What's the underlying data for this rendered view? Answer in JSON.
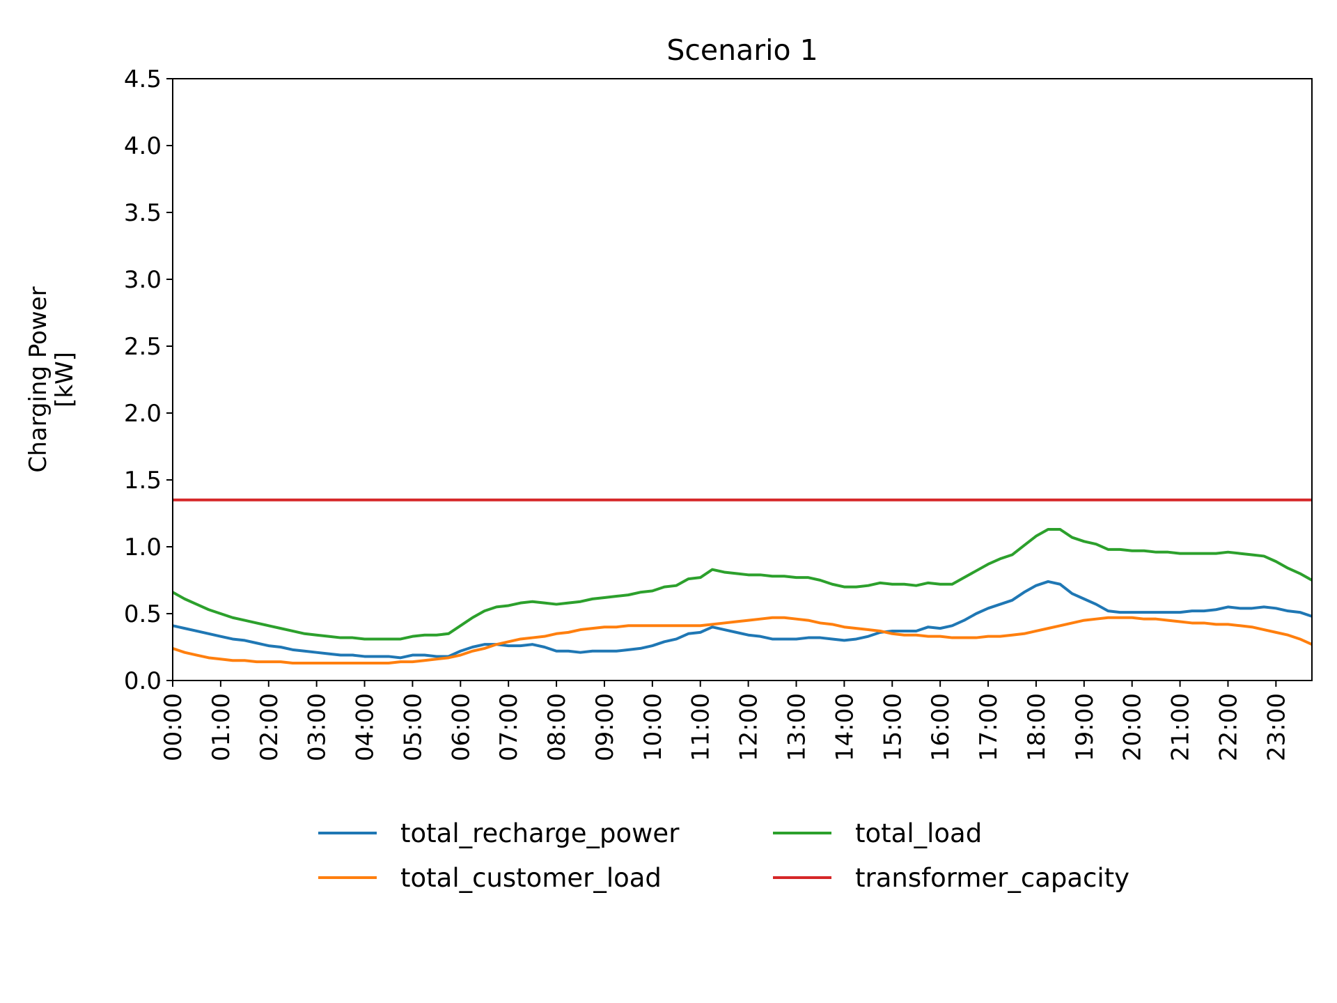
{
  "chart_data": {
    "type": "line",
    "title": "Scenario 1",
    "ylabel_lines": [
      "Charging Power",
      "[kW]"
    ],
    "xlabel": "",
    "x_ticks": [
      "00:00",
      "01:00",
      "02:00",
      "03:00",
      "04:00",
      "05:00",
      "06:00",
      "07:00",
      "08:00",
      "09:00",
      "10:00",
      "11:00",
      "12:00",
      "13:00",
      "14:00",
      "15:00",
      "16:00",
      "17:00",
      "18:00",
      "19:00",
      "20:00",
      "21:00",
      "22:00",
      "23:00"
    ],
    "x_hours": [
      0.0,
      0.25,
      0.5,
      0.75,
      1.0,
      1.25,
      1.5,
      1.75,
      2.0,
      2.25,
      2.5,
      2.75,
      3.0,
      3.25,
      3.5,
      3.75,
      4.0,
      4.25,
      4.5,
      4.75,
      5.0,
      5.25,
      5.5,
      5.75,
      6.0,
      6.25,
      6.5,
      6.75,
      7.0,
      7.25,
      7.5,
      7.75,
      8.0,
      8.25,
      8.5,
      8.75,
      9.0,
      9.25,
      9.5,
      9.75,
      10.0,
      10.25,
      10.5,
      10.75,
      11.0,
      11.25,
      11.5,
      11.75,
      12.0,
      12.25,
      12.5,
      12.75,
      13.0,
      13.25,
      13.5,
      13.75,
      14.0,
      14.25,
      14.5,
      14.75,
      15.0,
      15.25,
      15.5,
      15.75,
      16.0,
      16.25,
      16.5,
      16.75,
      17.0,
      17.25,
      17.5,
      17.75,
      18.0,
      18.25,
      18.5,
      18.75,
      19.0,
      19.25,
      19.5,
      19.75,
      20.0,
      20.25,
      20.5,
      20.75,
      21.0,
      21.25,
      21.5,
      21.75,
      22.0,
      22.25,
      22.5,
      22.75,
      23.0,
      23.25,
      23.5,
      23.75
    ],
    "xlim": [
      0,
      23.75
    ],
    "ylim": [
      0,
      4.5
    ],
    "y_ticks": [
      0.0,
      0.5,
      1.0,
      1.5,
      2.0,
      2.5,
      3.0,
      3.5,
      4.0,
      4.5
    ],
    "y_tick_labels": [
      "0.0",
      "0.5",
      "1.0",
      "1.5",
      "2.0",
      "2.5",
      "3.0",
      "3.5",
      "4.0",
      "4.5"
    ],
    "legend_position": "bottom-center",
    "grid": false,
    "series": [
      {
        "name": "total_recharge_power",
        "color": "#1f77b4",
        "values": [
          0.41,
          0.39,
          0.37,
          0.35,
          0.33,
          0.31,
          0.3,
          0.28,
          0.26,
          0.25,
          0.23,
          0.22,
          0.21,
          0.2,
          0.19,
          0.19,
          0.18,
          0.18,
          0.18,
          0.17,
          0.19,
          0.19,
          0.18,
          0.18,
          0.22,
          0.25,
          0.27,
          0.27,
          0.26,
          0.26,
          0.27,
          0.25,
          0.22,
          0.22,
          0.21,
          0.22,
          0.22,
          0.22,
          0.23,
          0.24,
          0.26,
          0.29,
          0.31,
          0.35,
          0.36,
          0.4,
          0.38,
          0.36,
          0.34,
          0.33,
          0.31,
          0.31,
          0.31,
          0.32,
          0.32,
          0.31,
          0.3,
          0.31,
          0.33,
          0.36,
          0.37,
          0.37,
          0.37,
          0.4,
          0.39,
          0.41,
          0.45,
          0.5,
          0.54,
          0.57,
          0.6,
          0.66,
          0.71,
          0.74,
          0.72,
          0.65,
          0.61,
          0.57,
          0.52,
          0.51,
          0.51,
          0.51,
          0.51,
          0.51,
          0.51,
          0.52,
          0.52,
          0.53,
          0.55,
          0.54,
          0.54,
          0.55,
          0.54,
          0.52,
          0.51,
          0.48
        ]
      },
      {
        "name": "total_customer_load",
        "color": "#ff7f0e",
        "values": [
          0.24,
          0.21,
          0.19,
          0.17,
          0.16,
          0.15,
          0.15,
          0.14,
          0.14,
          0.14,
          0.13,
          0.13,
          0.13,
          0.13,
          0.13,
          0.13,
          0.13,
          0.13,
          0.13,
          0.14,
          0.14,
          0.15,
          0.16,
          0.17,
          0.19,
          0.22,
          0.24,
          0.27,
          0.29,
          0.31,
          0.32,
          0.33,
          0.35,
          0.36,
          0.38,
          0.39,
          0.4,
          0.4,
          0.41,
          0.41,
          0.41,
          0.41,
          0.41,
          0.41,
          0.41,
          0.42,
          0.43,
          0.44,
          0.45,
          0.46,
          0.47,
          0.47,
          0.46,
          0.45,
          0.43,
          0.42,
          0.4,
          0.39,
          0.38,
          0.37,
          0.35,
          0.34,
          0.34,
          0.33,
          0.33,
          0.32,
          0.32,
          0.32,
          0.33,
          0.33,
          0.34,
          0.35,
          0.37,
          0.39,
          0.41,
          0.43,
          0.45,
          0.46,
          0.47,
          0.47,
          0.47,
          0.46,
          0.46,
          0.45,
          0.44,
          0.43,
          0.43,
          0.42,
          0.42,
          0.41,
          0.4,
          0.38,
          0.36,
          0.34,
          0.31,
          0.27
        ]
      },
      {
        "name": "total_load",
        "color": "#2ca02c",
        "values": [
          0.66,
          0.61,
          0.57,
          0.53,
          0.5,
          0.47,
          0.45,
          0.43,
          0.41,
          0.39,
          0.37,
          0.35,
          0.34,
          0.33,
          0.32,
          0.32,
          0.31,
          0.31,
          0.31,
          0.31,
          0.33,
          0.34,
          0.34,
          0.35,
          0.41,
          0.47,
          0.52,
          0.55,
          0.56,
          0.58,
          0.59,
          0.58,
          0.57,
          0.58,
          0.59,
          0.61,
          0.62,
          0.63,
          0.64,
          0.66,
          0.67,
          0.7,
          0.71,
          0.76,
          0.77,
          0.83,
          0.81,
          0.8,
          0.79,
          0.79,
          0.78,
          0.78,
          0.77,
          0.77,
          0.75,
          0.72,
          0.7,
          0.7,
          0.71,
          0.73,
          0.72,
          0.72,
          0.71,
          0.73,
          0.72,
          0.72,
          0.77,
          0.82,
          0.87,
          0.91,
          0.94,
          1.01,
          1.08,
          1.13,
          1.13,
          1.07,
          1.04,
          1.02,
          0.98,
          0.98,
          0.97,
          0.97,
          0.96,
          0.96,
          0.95,
          0.95,
          0.95,
          0.95,
          0.96,
          0.95,
          0.94,
          0.93,
          0.89,
          0.84,
          0.8,
          0.75
        ]
      },
      {
        "name": "transformer_capacity",
        "color": "#d62728",
        "values": [
          1.35,
          1.35
        ]
      }
    ]
  }
}
